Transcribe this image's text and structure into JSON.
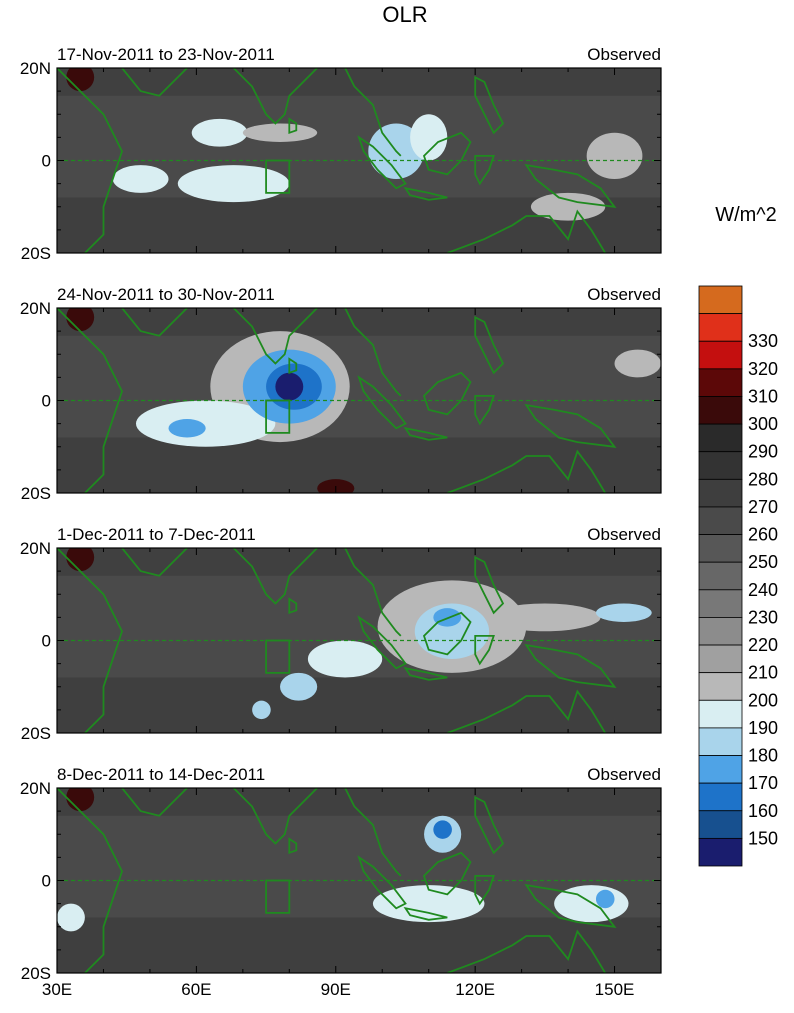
{
  "title": "OLR",
  "colorbar": {
    "unit": "W/m^2",
    "levels": [
      150,
      160,
      170,
      180,
      190,
      200,
      210,
      220,
      230,
      240,
      250,
      260,
      270,
      280,
      290,
      300,
      310,
      320,
      330
    ],
    "colors": [
      "#1a1d6e",
      "#17508f",
      "#1e73c9",
      "#4fa3e6",
      "#a9d4eb",
      "#d9eef2",
      "#b8b8b8",
      "#a0a0a0",
      "#8c8c8c",
      "#787878",
      "#676767",
      "#575757",
      "#4a4a4a",
      "#3e3e3e",
      "#333333",
      "#2a2a2a",
      "#3a0a0a",
      "#5c0808",
      "#c40f0f",
      "#e0301a",
      "#d56a1e"
    ]
  },
  "chart_data": [
    {
      "type": "heatmap",
      "left_title": "17-Nov-2011 to 23-Nov-2011",
      "right_title": "Observed",
      "x_ticks": [
        "30E",
        "60E",
        "90E",
        "120E",
        "150E"
      ],
      "y_ticks": [
        "20N",
        "0",
        "20S"
      ],
      "xlim": [
        30,
        160
      ],
      "ylim": [
        -20,
        20
      ],
      "box": {
        "lon": [
          75,
          80
        ],
        "lat": [
          -7,
          0
        ]
      },
      "features": [
        {
          "lon": 48,
          "lat": -4,
          "value": 195,
          "rx": 6,
          "ry": 3
        },
        {
          "lon": 65,
          "lat": 6,
          "value": 195,
          "rx": 6,
          "ry": 3
        },
        {
          "lon": 68,
          "lat": -5,
          "value": 195,
          "rx": 12,
          "ry": 4
        },
        {
          "lon": 78,
          "lat": 6,
          "value": 200,
          "rx": 8,
          "ry": 2
        },
        {
          "lon": 103,
          "lat": 2,
          "value": 185,
          "rx": 6,
          "ry": 6
        },
        {
          "lon": 110,
          "lat": 5,
          "value": 195,
          "rx": 4,
          "ry": 5
        },
        {
          "lon": 150,
          "lat": 1,
          "value": 200,
          "rx": 6,
          "ry": 5
        },
        {
          "lon": 140,
          "lat": -10,
          "value": 200,
          "rx": 8,
          "ry": 3
        },
        {
          "lon": 35,
          "lat": 18,
          "value": 305,
          "rx": 3,
          "ry": 3
        }
      ]
    },
    {
      "type": "heatmap",
      "left_title": "24-Nov-2011 to 30-Nov-2011",
      "right_title": "Observed",
      "x_ticks": [
        "30E",
        "60E",
        "90E",
        "120E",
        "150E"
      ],
      "y_ticks": [
        "20N",
        "0",
        "20S"
      ],
      "xlim": [
        30,
        160
      ],
      "ylim": [
        -20,
        20
      ],
      "box": {
        "lon": [
          75,
          80
        ],
        "lat": [
          -7,
          0
        ]
      },
      "features": [
        {
          "lon": 78,
          "lat": 3,
          "value": 200,
          "rx": 15,
          "ry": 12
        },
        {
          "lon": 62,
          "lat": -5,
          "value": 190,
          "rx": 15,
          "ry": 5
        },
        {
          "lon": 80,
          "lat": 3,
          "value": 175,
          "rx": 10,
          "ry": 8
        },
        {
          "lon": 81,
          "lat": 3,
          "value": 160,
          "rx": 6,
          "ry": 5
        },
        {
          "lon": 80,
          "lat": 3,
          "value": 148,
          "rx": 3,
          "ry": 3
        },
        {
          "lon": 58,
          "lat": -6,
          "value": 175,
          "rx": 4,
          "ry": 2
        },
        {
          "lon": 155,
          "lat": 8,
          "value": 200,
          "rx": 5,
          "ry": 3
        },
        {
          "lon": 35,
          "lat": 18,
          "value": 305,
          "rx": 3,
          "ry": 3
        },
        {
          "lon": 90,
          "lat": -19,
          "value": 305,
          "rx": 4,
          "ry": 2
        }
      ]
    },
    {
      "type": "heatmap",
      "left_title": "1-Dec-2011 to 7-Dec-2011",
      "right_title": "Observed",
      "x_ticks": [
        "30E",
        "60E",
        "90E",
        "120E",
        "150E"
      ],
      "y_ticks": [
        "20N",
        "0",
        "20S"
      ],
      "xlim": [
        30,
        160
      ],
      "ylim": [
        -20,
        20
      ],
      "box": {
        "lon": [
          75,
          80
        ],
        "lat": [
          -7,
          0
        ]
      },
      "features": [
        {
          "lon": 115,
          "lat": 3,
          "value": 200,
          "rx": 16,
          "ry": 10
        },
        {
          "lon": 135,
          "lat": 5,
          "value": 200,
          "rx": 12,
          "ry": 3
        },
        {
          "lon": 152,
          "lat": 6,
          "value": 185,
          "rx": 6,
          "ry": 2
        },
        {
          "lon": 92,
          "lat": -4,
          "value": 190,
          "rx": 8,
          "ry": 4
        },
        {
          "lon": 115,
          "lat": 2,
          "value": 180,
          "rx": 8,
          "ry": 6
        },
        {
          "lon": 114,
          "lat": 5,
          "value": 170,
          "rx": 3,
          "ry": 2
        },
        {
          "lon": 82,
          "lat": -10,
          "value": 180,
          "rx": 4,
          "ry": 3
        },
        {
          "lon": 74,
          "lat": -15,
          "value": 185,
          "rx": 2,
          "ry": 2
        },
        {
          "lon": 35,
          "lat": 18,
          "value": 305,
          "rx": 3,
          "ry": 3
        }
      ]
    },
    {
      "type": "heatmap",
      "left_title": "8-Dec-2011 to 14-Dec-2011",
      "right_title": "Observed",
      "x_ticks": [
        "30E",
        "60E",
        "90E",
        "120E",
        "150E"
      ],
      "y_ticks": [
        "20N",
        "0",
        "20S"
      ],
      "xlim": [
        30,
        160
      ],
      "ylim": [
        -20,
        20
      ],
      "box": {
        "lon": [
          75,
          80
        ],
        "lat": [
          -7,
          0
        ]
      },
      "features": [
        {
          "lon": 113,
          "lat": 10,
          "value": 180,
          "rx": 4,
          "ry": 4
        },
        {
          "lon": 113,
          "lat": 11,
          "value": 165,
          "rx": 2,
          "ry": 2
        },
        {
          "lon": 110,
          "lat": -5,
          "value": 195,
          "rx": 12,
          "ry": 4
        },
        {
          "lon": 145,
          "lat": -5,
          "value": 195,
          "rx": 8,
          "ry": 4
        },
        {
          "lon": 148,
          "lat": -4,
          "value": 175,
          "rx": 2,
          "ry": 2
        },
        {
          "lon": 33,
          "lat": -8,
          "value": 195,
          "rx": 3,
          "ry": 3
        },
        {
          "lon": 35,
          "lat": 18,
          "value": 305,
          "rx": 3,
          "ry": 3
        }
      ]
    }
  ]
}
